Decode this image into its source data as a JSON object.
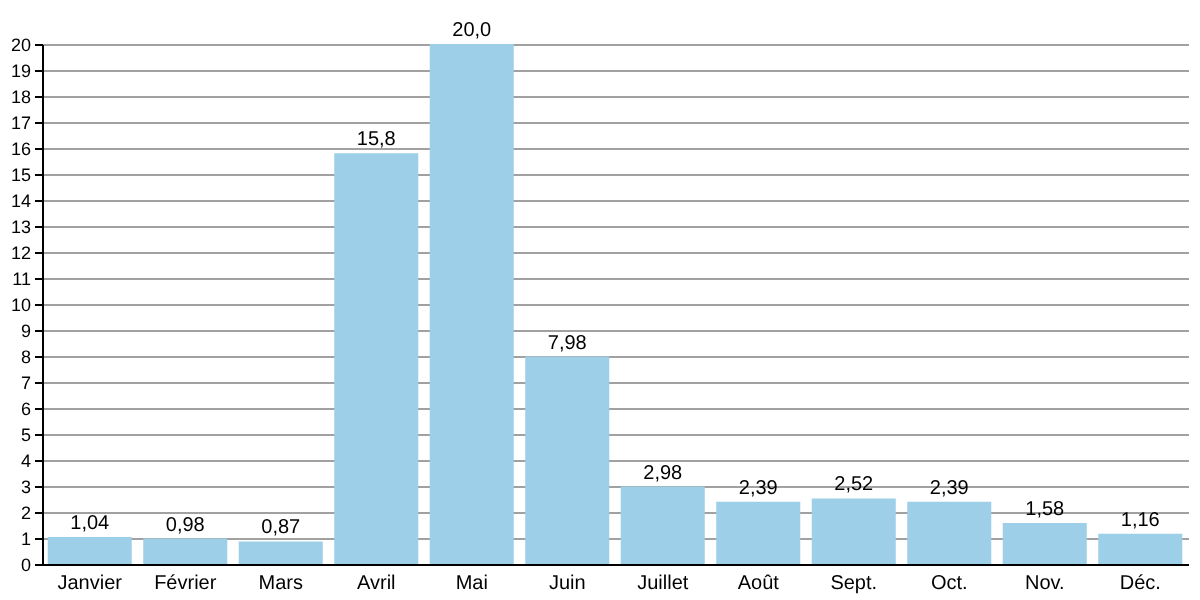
{
  "chart_data": {
    "type": "bar",
    "categories": [
      "Janvier",
      "Février",
      "Mars",
      "Avril",
      "Mai",
      "Juin",
      "Juillet",
      "Août",
      "Sept.",
      "Oct.",
      "Nov.",
      "Déc."
    ],
    "values": [
      1.04,
      0.98,
      0.87,
      15.8,
      20.0,
      7.98,
      2.98,
      2.39,
      2.52,
      2.39,
      1.58,
      1.16
    ],
    "value_labels": [
      "1,04",
      "0,98",
      "0,87",
      "15,8",
      "20,0",
      "7,98",
      "2,98",
      "2,39",
      "2,52",
      "2,39",
      "1,58",
      "1,16"
    ],
    "color": "#9dd0e8",
    "ylim": [
      0,
      20
    ],
    "yticks": [
      0,
      1,
      2,
      3,
      4,
      5,
      6,
      7,
      8,
      9,
      10,
      11,
      12,
      13,
      14,
      15,
      16,
      17,
      18,
      19,
      20
    ],
    "grid": "y"
  }
}
